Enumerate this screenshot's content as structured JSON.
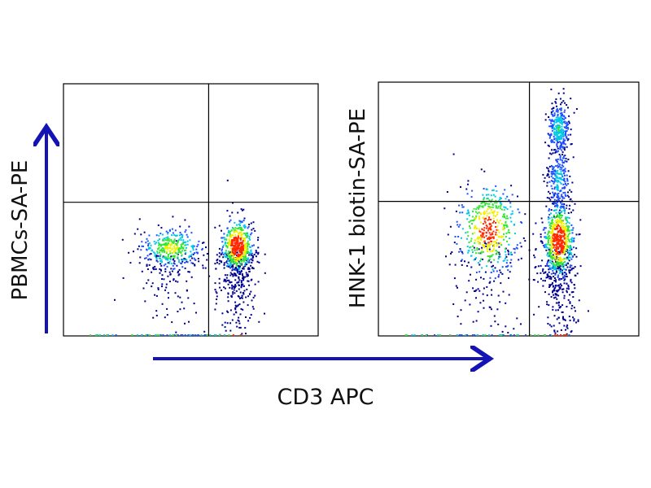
{
  "chart_data": [
    {
      "type": "scatter",
      "subtype": "flow-cytometry density dot plot",
      "xlabel": "CD3 APC",
      "ylabel": "PBMCs-SA-PE",
      "xlim": [
        0,
        100
      ],
      "ylim": [
        0,
        100
      ],
      "quadrant_gates": {
        "x": 57,
        "y": 53
      },
      "grid": false,
      "populations": [
        {
          "x": 42,
          "y": 35,
          "sx": 6,
          "sy": 4,
          "n": 450,
          "tail": 0.25
        },
        {
          "x": 68,
          "y": 36,
          "sx": 3,
          "sy": 5,
          "n": 800,
          "tail": 0.35
        }
      ],
      "sparse_events": [
        [
          42,
          38
        ],
        [
          44,
          38
        ],
        [
          71,
          28
        ],
        [
          60,
          16
        ],
        [
          55,
          2
        ],
        [
          48,
          22
        ]
      ]
    },
    {
      "type": "scatter",
      "subtype": "flow-cytometry density dot plot",
      "xlabel": "CD3 APC",
      "ylabel": "HNK-1 biotin-SA-PE",
      "xlim": [
        0,
        100
      ],
      "ylim": [
        0,
        100
      ],
      "quadrant_gates": {
        "x": 58,
        "y": 53
      },
      "grid": false,
      "populations": [
        {
          "x": 42,
          "y": 42,
          "sx": 6,
          "sy": 9,
          "n": 600,
          "tail": 0.2
        },
        {
          "x": 69,
          "y": 38,
          "sx": 2.8,
          "sy": 7,
          "n": 900,
          "tail": 0.3
        },
        {
          "x": 69,
          "y": 82,
          "sx": 2.2,
          "sy": 5,
          "n": 300,
          "tail": 0
        },
        {
          "x": 69,
          "y": 62,
          "sx": 2.2,
          "sy": 7,
          "n": 250,
          "tail": 0
        }
      ]
    }
  ],
  "axis_arrow_color": "#1414b4",
  "density_colors": [
    "#00008b",
    "#1e50ff",
    "#00c8e6",
    "#32e632",
    "#f0f000",
    "#ff2800"
  ]
}
